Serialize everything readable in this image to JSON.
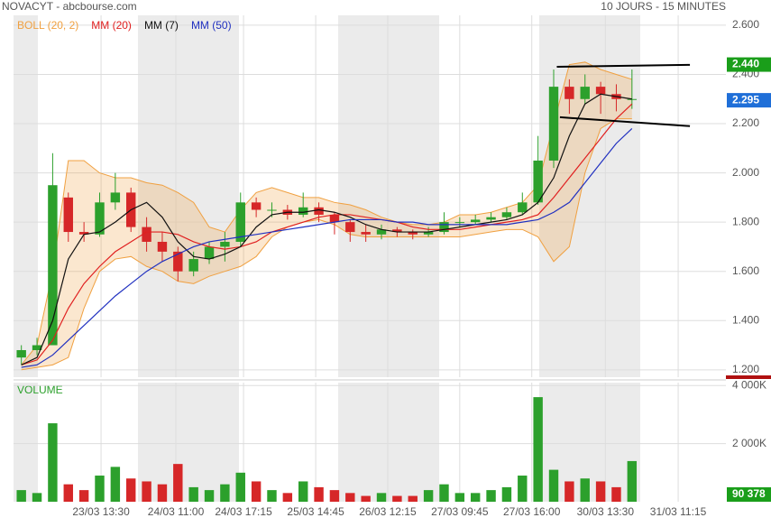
{
  "chart_data": {
    "type": "candlestick",
    "title": "NOVACYT - abcbourse.com",
    "subtitle": "10 JOURS - 15 MINUTES",
    "candles": {
      "up_color": "#2ca02c",
      "down_color": "#d62728",
      "open": [
        1.25,
        1.28,
        1.3,
        1.9,
        1.76,
        1.75,
        1.88,
        1.92,
        1.78,
        1.72,
        1.68,
        1.6,
        1.65,
        1.7,
        1.72,
        1.88,
        1.85,
        1.85,
        1.83,
        1.86,
        1.83,
        1.8,
        1.76,
        1.75,
        1.77,
        1.76,
        1.75,
        1.76,
        1.8,
        1.8,
        1.81,
        1.82,
        1.84,
        1.88,
        2.05,
        2.35,
        2.3,
        2.35,
        2.32,
        2.3
      ],
      "high": [
        1.3,
        1.33,
        2.08,
        1.92,
        1.8,
        1.92,
        2.0,
        1.94,
        1.82,
        1.76,
        1.7,
        1.68,
        1.72,
        1.76,
        1.92,
        1.9,
        1.88,
        1.87,
        1.92,
        1.88,
        1.84,
        1.81,
        1.79,
        1.79,
        1.78,
        1.77,
        1.78,
        1.84,
        1.82,
        1.83,
        1.84,
        1.86,
        1.92,
        2.15,
        2.42,
        2.38,
        2.4,
        2.37,
        2.36,
        2.42
      ],
      "low": [
        1.22,
        1.26,
        1.3,
        1.72,
        1.72,
        1.74,
        1.85,
        1.76,
        1.68,
        1.64,
        1.56,
        1.58,
        1.63,
        1.64,
        1.7,
        1.82,
        1.82,
        1.81,
        1.82,
        1.8,
        1.75,
        1.72,
        1.72,
        1.73,
        1.74,
        1.73,
        1.74,
        1.75,
        1.78,
        1.79,
        1.8,
        1.81,
        1.83,
        1.87,
        2.02,
        2.24,
        2.28,
        2.24,
        2.25,
        2.26
      ],
      "close": [
        1.28,
        1.3,
        1.95,
        1.76,
        1.75,
        1.88,
        1.92,
        1.78,
        1.72,
        1.68,
        1.6,
        1.65,
        1.7,
        1.72,
        1.88,
        1.85,
        1.85,
        1.83,
        1.86,
        1.83,
        1.8,
        1.76,
        1.75,
        1.77,
        1.76,
        1.75,
        1.76,
        1.8,
        1.8,
        1.81,
        1.82,
        1.84,
        1.88,
        2.05,
        2.35,
        2.3,
        2.35,
        2.32,
        2.3,
        2.3
      ]
    },
    "series": [
      {
        "name": "BOLL (20, 2)",
        "color": "#f0a040",
        "upper": [
          1.22,
          1.3,
          1.6,
          2.05,
          2.05,
          2.0,
          1.98,
          1.98,
          1.96,
          1.95,
          1.92,
          1.88,
          1.78,
          1.76,
          1.85,
          1.92,
          1.94,
          1.92,
          1.9,
          1.9,
          1.88,
          1.87,
          1.85,
          1.82,
          1.8,
          1.79,
          1.79,
          1.8,
          1.83,
          1.83,
          1.84,
          1.86,
          1.88,
          1.95,
          2.2,
          2.44,
          2.45,
          2.42,
          2.4,
          2.38
        ],
        "lower": [
          1.2,
          1.21,
          1.22,
          1.25,
          1.45,
          1.6,
          1.65,
          1.66,
          1.62,
          1.6,
          1.56,
          1.55,
          1.58,
          1.6,
          1.62,
          1.66,
          1.74,
          1.78,
          1.8,
          1.81,
          1.79,
          1.75,
          1.74,
          1.74,
          1.74,
          1.74,
          1.74,
          1.74,
          1.74,
          1.75,
          1.76,
          1.77,
          1.77,
          1.74,
          1.64,
          1.7,
          2.0,
          2.18,
          2.22,
          2.22
        ]
      },
      {
        "name": "MM (20)",
        "color": "#e02020",
        "values": [
          1.22,
          1.24,
          1.32,
          1.45,
          1.55,
          1.62,
          1.68,
          1.72,
          1.76,
          1.76,
          1.75,
          1.72,
          1.7,
          1.69,
          1.7,
          1.72,
          1.76,
          1.78,
          1.8,
          1.82,
          1.83,
          1.83,
          1.82,
          1.81,
          1.8,
          1.78,
          1.77,
          1.77,
          1.77,
          1.78,
          1.79,
          1.8,
          1.81,
          1.83,
          1.9,
          1.98,
          2.06,
          2.14,
          2.22,
          2.28
        ]
      },
      {
        "name": "MM (7)",
        "color": "#111111",
        "values": [
          1.22,
          1.25,
          1.4,
          1.65,
          1.75,
          1.76,
          1.8,
          1.85,
          1.88,
          1.82,
          1.72,
          1.66,
          1.65,
          1.67,
          1.7,
          1.78,
          1.83,
          1.84,
          1.84,
          1.85,
          1.84,
          1.82,
          1.79,
          1.77,
          1.76,
          1.76,
          1.76,
          1.77,
          1.78,
          1.79,
          1.8,
          1.81,
          1.83,
          1.88,
          1.98,
          2.15,
          2.28,
          2.32,
          2.31,
          2.3
        ]
      },
      {
        "name": "MM (50)",
        "color": "#2030c0",
        "values": [
          1.21,
          1.22,
          1.26,
          1.32,
          1.38,
          1.44,
          1.5,
          1.55,
          1.6,
          1.64,
          1.67,
          1.7,
          1.72,
          1.73,
          1.74,
          1.75,
          1.76,
          1.77,
          1.78,
          1.79,
          1.8,
          1.81,
          1.81,
          1.81,
          1.8,
          1.8,
          1.79,
          1.79,
          1.79,
          1.79,
          1.79,
          1.79,
          1.8,
          1.81,
          1.84,
          1.88,
          1.96,
          2.04,
          2.12,
          2.18
        ]
      }
    ],
    "trendlines": [
      {
        "x": [
          34.2,
          42.7
        ],
        "y": [
          2.431,
          2.439
        ]
      },
      {
        "x": [
          34.4,
          42.7
        ],
        "y": [
          2.226,
          2.19
        ]
      }
    ],
    "markers": [
      {
        "value": 2.44,
        "label": "2.440",
        "color": "#1a9e1a"
      },
      {
        "value": 2.295,
        "label": "2.295",
        "color": "#1f6fd8"
      }
    ],
    "xlim": [
      -0.5,
      45
    ],
    "xticks": [
      {
        "value": 5.09,
        "label": "23/03 13:30"
      },
      {
        "value": 9.87,
        "label": "24/03 11:00"
      },
      {
        "value": 14.19,
        "label": "24/03 17:15"
      },
      {
        "value": 18.8,
        "label": "25/03 14:45"
      },
      {
        "value": 23.4,
        "label": "26/03 12:15"
      },
      {
        "value": 28.0,
        "label": "27/03 09:45"
      },
      {
        "value": 32.6,
        "label": "27/03 16:00"
      },
      {
        "value": 37.3,
        "label": "30/03 13:30"
      },
      {
        "value": 41.95,
        "label": "31/03 11:15"
      }
    ],
    "ylim": [
      1.17,
      2.64
    ],
    "yticks": [
      {
        "value": 1.2,
        "label": "1.200"
      },
      {
        "value": 1.4,
        "label": "1.400"
      },
      {
        "value": 1.6,
        "label": "1.600"
      },
      {
        "value": 1.8,
        "label": "1.800"
      },
      {
        "value": 2.0,
        "label": "2.000"
      },
      {
        "value": 2.2,
        "label": "2.200"
      },
      {
        "value": 2.4,
        "label": "2.400"
      },
      {
        "value": 2.6,
        "label": "2.600"
      }
    ],
    "grid": true,
    "volume": {
      "label": "VOLUME",
      "color": "#2ca02c",
      "values": [
        400,
        300,
        2700,
        600,
        400,
        900,
        1200,
        800,
        700,
        600,
        1300,
        500,
        400,
        600,
        1000,
        700,
        400,
        300,
        700,
        500,
        400,
        300,
        200,
        300,
        200,
        200,
        400,
        600,
        300,
        300,
        400,
        500,
        900,
        3600,
        1100,
        700,
        800,
        700,
        500,
        1400
      ],
      "ylim": [
        0,
        4100
      ],
      "yticks": [
        {
          "value": 2000,
          "label": "2 000K"
        },
        {
          "value": 4000,
          "label": "4 000K"
        }
      ],
      "marker": {
        "value": 90.378,
        "label": "90 378",
        "color": "#1a9e1a"
      }
    }
  }
}
